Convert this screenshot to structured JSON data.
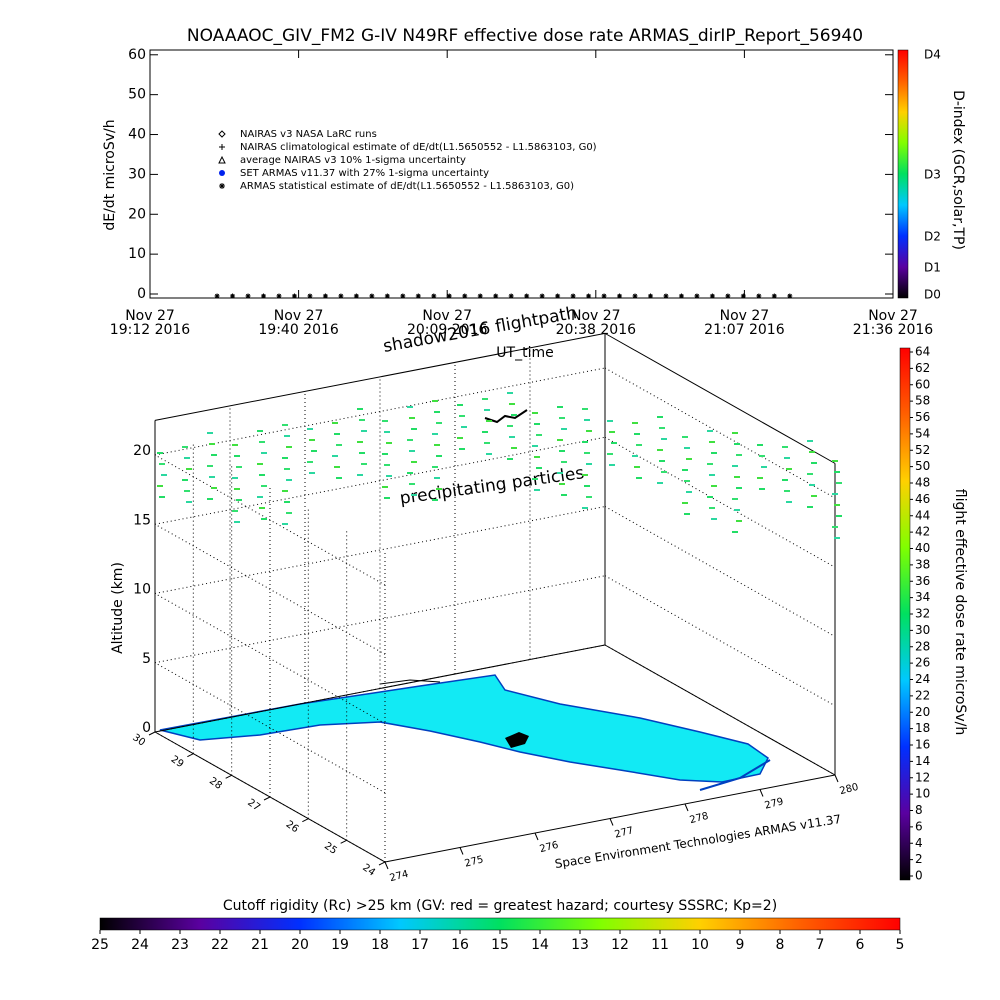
{
  "chart_data": [
    {
      "type": "scatter",
      "title": "NOAAAOC_GIV_FM2 G-IV    N49RF   effective dose rate ARMAS_dirIP_Report_56940",
      "xlabel": "UT_time",
      "ylabel": "dE/dt microSv/h",
      "xlim": [
        "2016-11-27T19:12:00",
        "2016-11-27T21:36:00"
      ],
      "xticks": [
        {
          "value": "2016-11-27T19:12:00",
          "label": [
            "Nov 27",
            "19:12 2016"
          ]
        },
        {
          "value": "2016-11-27T19:40:48",
          "label": [
            "Nov 27",
            "19:40 2016"
          ]
        },
        {
          "value": "2016-11-27T20:09:36",
          "label": [
            "Nov 27",
            "20:09 2016"
          ]
        },
        {
          "value": "2016-11-27T20:38:24",
          "label": [
            "Nov 27",
            "20:38 2016"
          ]
        },
        {
          "value": "2016-11-27T21:07:12",
          "label": [
            "Nov 27",
            "21:07 2016"
          ]
        },
        {
          "value": "2016-11-27T21:36:00",
          "label": [
            "Nov 27",
            "21:36 2016"
          ]
        }
      ],
      "ylim": [
        -1,
        61.2
      ],
      "yticks": [
        0,
        10,
        20,
        30,
        40,
        50,
        60
      ],
      "series": [
        {
          "name": "NAIRAS v3 NASA LaRC runs",
          "marker": "diamond",
          "color": "#000000",
          "x": [],
          "values": []
        },
        {
          "name": "NAIRAS climatological estimate of dE/dt(L1.5650552 - L1.5863103, G0)",
          "marker": "plus",
          "color": "#000000",
          "x": [],
          "values": []
        },
        {
          "name": "average NAIRAS v3 10% 1-sigma uncertainty",
          "marker": "triangle",
          "color": "#000000",
          "x": [],
          "values": []
        },
        {
          "name": "SET ARMAS v11.37 with 27% 1-sigma uncertainty",
          "marker": "circle",
          "color": "#0022ee",
          "x": [],
          "values": []
        },
        {
          "name": "ARMAS statistical estimate of dE/dt(L1.5650552 - L1.5863103, G0)",
          "marker": "asterisk",
          "color": "#000000",
          "x": [
            "2016-11-27T19:25",
            "2016-11-27T19:28",
            "2016-11-27T19:31",
            "2016-11-27T19:34",
            "2016-11-27T19:37",
            "2016-11-27T19:40",
            "2016-11-27T19:43",
            "2016-11-27T19:46",
            "2016-11-27T19:49",
            "2016-11-27T19:52",
            "2016-11-27T19:55",
            "2016-11-27T19:58",
            "2016-11-27T20:01",
            "2016-11-27T20:04",
            "2016-11-27T20:07",
            "2016-11-27T20:10",
            "2016-11-27T20:13",
            "2016-11-27T20:16",
            "2016-11-27T20:19",
            "2016-11-27T20:22",
            "2016-11-27T20:25",
            "2016-11-27T20:28",
            "2016-11-27T20:31",
            "2016-11-27T20:34",
            "2016-11-27T20:37",
            "2016-11-27T20:40",
            "2016-11-27T20:43",
            "2016-11-27T20:46",
            "2016-11-27T20:49",
            "2016-11-27T20:52",
            "2016-11-27T20:55",
            "2016-11-27T20:58",
            "2016-11-27T21:01",
            "2016-11-27T21:04",
            "2016-11-27T21:07",
            "2016-11-27T21:10",
            "2016-11-27T21:13",
            "2016-11-27T21:16"
          ],
          "values": [
            0,
            0,
            0,
            0,
            0,
            0,
            0,
            0,
            0,
            0,
            0,
            0,
            0,
            0,
            0,
            0,
            0,
            0,
            0,
            0,
            0,
            0,
            0,
            0,
            0,
            0,
            0,
            0,
            0,
            0,
            0,
            0,
            0,
            0,
            0,
            0,
            0,
            0
          ]
        }
      ],
      "colorbar": {
        "label": "D-index (GCR,solar,TP)",
        "ticklabels": [
          "D0",
          "D1",
          "D2",
          "D3",
          "D4"
        ],
        "colors": [
          "#000000",
          "#5a00a0",
          "#0030ff",
          "#00c8ff",
          "#00e060",
          "#80ff00",
          "#ffd000",
          "#ff6000",
          "#ff0000"
        ]
      }
    },
    {
      "type": "surface3d",
      "annotations": [
        "shadow2016 flightpath",
        "precipitating particles"
      ],
      "zlabel": "Altitude (km)",
      "zlim": [
        0,
        22.5
      ],
      "zticks": [
        0,
        5,
        10,
        15,
        20
      ],
      "ylim": [
        24,
        30
      ],
      "yticks": [
        24,
        25,
        26,
        27,
        28,
        29,
        30
      ],
      "xlim": [
        274,
        280
      ],
      "xticks": [
        274,
        275,
        276,
        277,
        278,
        279,
        280
      ],
      "credit": "Space Environment Technologies ARMAS v11.37",
      "colorbar": {
        "label": "flight effective dose rate microSv/h",
        "lim": [
          0,
          64
        ],
        "ticks": [
          0,
          2,
          4,
          6,
          8,
          10,
          12,
          14,
          16,
          18,
          20,
          22,
          24,
          26,
          28,
          30,
          32,
          34,
          36,
          38,
          40,
          42,
          44,
          46,
          48,
          50,
          52,
          54,
          56,
          58,
          60,
          62,
          64
        ],
        "colors": [
          "#000000",
          "#5a00a0",
          "#0030ff",
          "#00c8ff",
          "#00e060",
          "#80ff00",
          "#ffd000",
          "#ff6000",
          "#ff0000"
        ]
      }
    },
    {
      "type": "colorbar",
      "title": "Cutoff rigidity (Rc) >25 km (GV: red = greatest hazard; courtesy SSSRC; Kp=2)",
      "xlim": [
        25,
        5
      ],
      "xticks": [
        25,
        24,
        23,
        22,
        21,
        20,
        19,
        18,
        17,
        16,
        15,
        14,
        13,
        12,
        11,
        10,
        9,
        8,
        7,
        6,
        5
      ],
      "colors": [
        "#000000",
        "#5a00a0",
        "#0030ff",
        "#00c8ff",
        "#00e060",
        "#80ff00",
        "#ffd000",
        "#ff6000",
        "#ff0000"
      ]
    }
  ]
}
